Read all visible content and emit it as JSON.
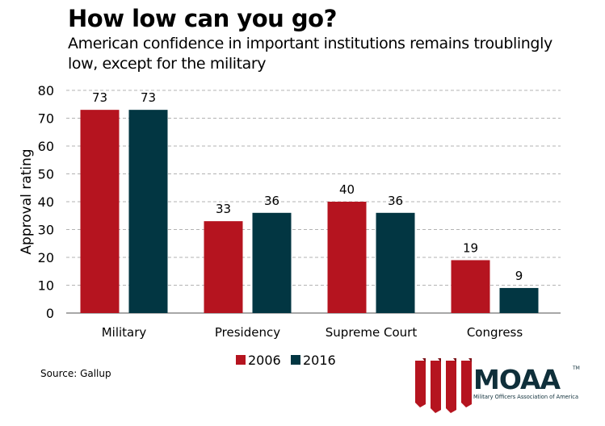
{
  "header": {
    "title": "How low can you go?",
    "subtitle": "American confidence in important institutions remains troublingly low, except for the military"
  },
  "footer": {
    "source": "Source: Gallup",
    "logo_text": "MOAA",
    "logo_tm": "TM",
    "logo_tagline": "Military Officers Association of America"
  },
  "colors": {
    "series_2006": "#b5141f",
    "series_2016": "#023642",
    "logo_text": "#0f2f3a"
  },
  "chart_data": {
    "type": "bar",
    "title": "How low can you go?",
    "xlabel": "",
    "ylabel": "Approval rating",
    "ylim": [
      0,
      80
    ],
    "yticks": [
      0,
      10,
      20,
      30,
      40,
      50,
      60,
      70,
      80
    ],
    "grid": true,
    "legend_position": "bottom-center",
    "categories": [
      "Military",
      "Presidency",
      "Supreme Court",
      "Congress"
    ],
    "series": [
      {
        "name": "2006",
        "color": "#b5141f",
        "values": [
          73,
          33,
          40,
          19
        ]
      },
      {
        "name": "2016",
        "color": "#023642",
        "values": [
          73,
          36,
          36,
          9
        ]
      }
    ]
  }
}
